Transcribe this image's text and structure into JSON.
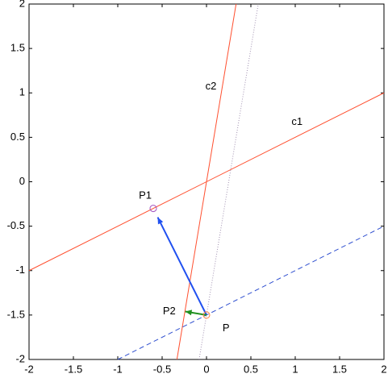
{
  "chart_data": {
    "type": "line",
    "xlim": [
      -2,
      2
    ],
    "ylim": [
      -2,
      2
    ],
    "xticks": [
      -2,
      -1.5,
      -1,
      -0.5,
      0,
      0.5,
      1,
      1.5,
      2
    ],
    "yticks": [
      -2,
      -1.5,
      -1,
      -0.5,
      0,
      0.5,
      1,
      1.5,
      2
    ],
    "grid": false,
    "series": [
      {
        "color": "#ff5030",
        "style": "solid",
        "x": [
          -2,
          2
        ],
        "values": [
          -1,
          1
        ]
      },
      {
        "color": "#ff5030",
        "style": "solid",
        "x": [
          -0.3333,
          0.3333
        ],
        "values": [
          -2,
          2
        ]
      },
      {
        "color": "#a090b0",
        "style": "dotted",
        "x": [
          -0.0833,
          0.5833
        ],
        "values": [
          -2,
          2
        ]
      },
      {
        "color": "#3050d0",
        "style": "dashed",
        "x": [
          -1,
          2
        ],
        "values": [
          -2,
          -0.5
        ]
      }
    ],
    "arrows": [
      {
        "color": "#2050f0",
        "x": [
          0,
          -0.55
        ],
        "values": [
          -1.5,
          -0.4
        ]
      },
      {
        "color": "#209020",
        "x": [
          0,
          -0.24
        ],
        "values": [
          -1.5,
          -1.46
        ]
      }
    ],
    "points": [
      {
        "color": "#a050c0",
        "x": -0.6,
        "y": -0.3
      },
      {
        "color": "#ff8040",
        "x": 0,
        "y": -1.5
      }
    ],
    "annotations": [
      {
        "text": "c2",
        "x": 0.05,
        "y": 1.07
      },
      {
        "text": "c1",
        "x": 1.02,
        "y": 0.67
      },
      {
        "text": "P1",
        "x": -0.69,
        "y": -0.16
      },
      {
        "text": "P2",
        "x": -0.42,
        "y": -1.46
      },
      {
        "text": "P",
        "x": 0.22,
        "y": -1.65
      }
    ]
  }
}
